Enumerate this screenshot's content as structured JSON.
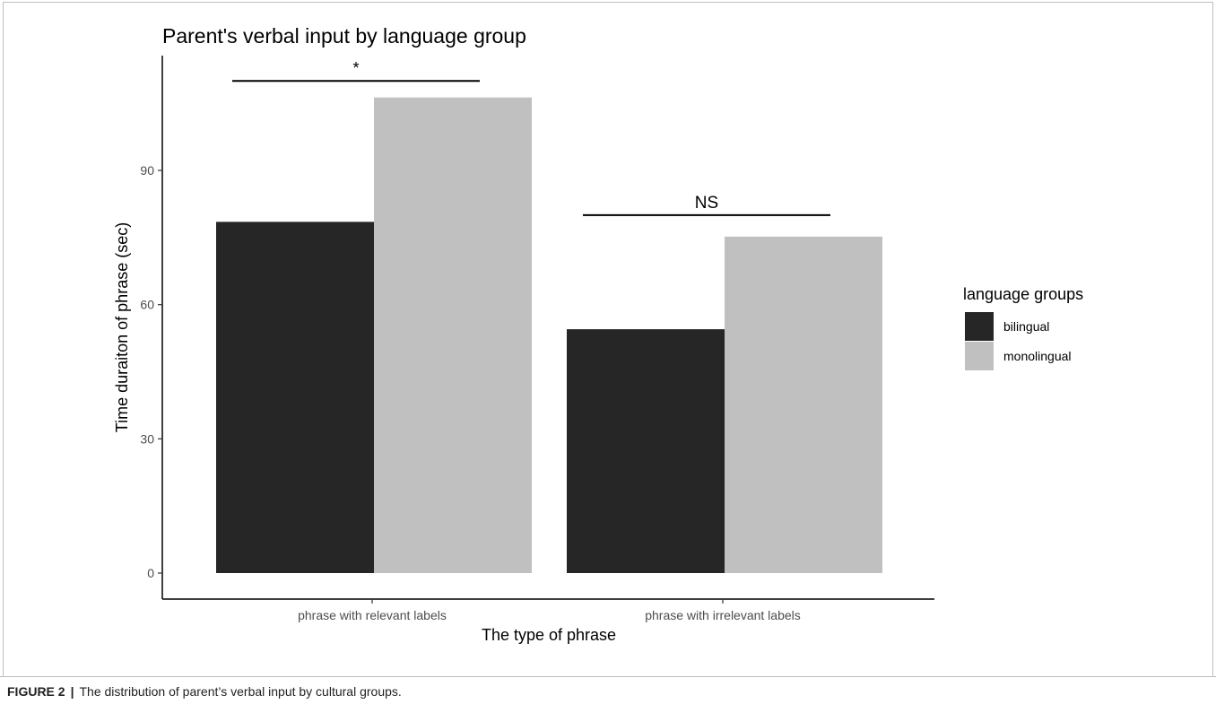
{
  "figure": {
    "caption_label": "FIGURE 2",
    "caption_separator": "|",
    "caption_text": "The distribution of parent’s verbal input by cultural groups."
  },
  "chart_data": {
    "type": "bar",
    "title": "Parent's verbal input by language group",
    "xlabel": "The type of phrase",
    "ylabel": "Time duraiton of phrase (sec)",
    "categories": [
      "phrase with relevant labels",
      "phrase with irrelevant labels"
    ],
    "series": [
      {
        "name": "bilingual",
        "values": [
          78.5,
          54.5
        ],
        "color": "#262626"
      },
      {
        "name": "monolingual",
        "values": [
          106.3,
          75.2
        ],
        "color": "#c0c0c0"
      }
    ],
    "ylim": [
      0,
      114
    ],
    "yticks": [
      0,
      30,
      60,
      90
    ],
    "grid": false,
    "legend": {
      "title": "language groups",
      "position": "right"
    },
    "annotations": [
      {
        "category_index": 0,
        "text": "*",
        "bracket_value": 110
      },
      {
        "category_index": 1,
        "text": "NS",
        "bracket_value": 80
      }
    ]
  }
}
